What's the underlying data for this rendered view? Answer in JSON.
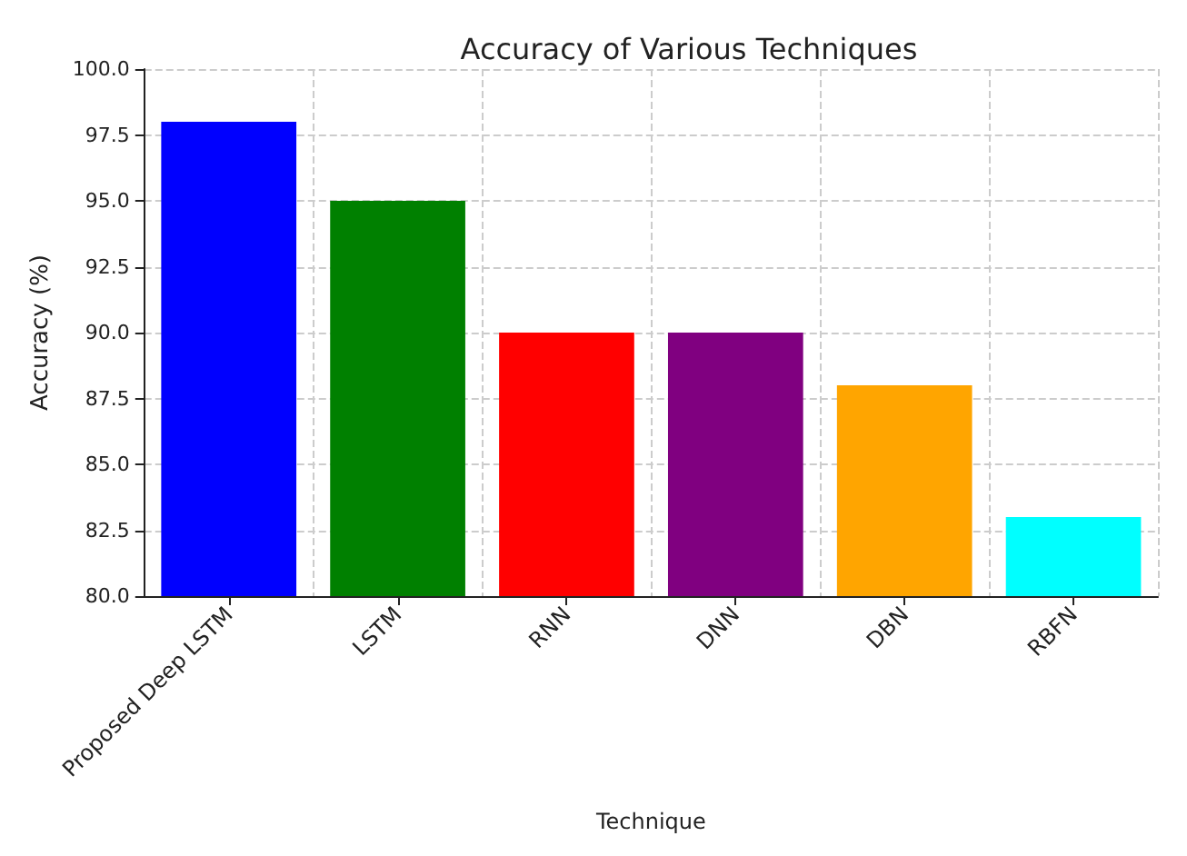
{
  "chart_data": {
    "type": "bar",
    "title": "Accuracy of Various Techniques",
    "xlabel": "Technique",
    "ylabel": "Accuracy (%)",
    "categories": [
      "Proposed Deep LSTM",
      "LSTM",
      "RNN",
      "DNN",
      "DBN",
      "RBFN"
    ],
    "values": [
      98,
      95,
      90,
      90,
      88,
      83
    ],
    "colors": [
      "#0000ff",
      "#008000",
      "#ff0000",
      "#800080",
      "#ffa500",
      "#00ffff"
    ],
    "ylim": [
      80,
      100
    ],
    "yticks": [
      {
        "value": 80,
        "label": "80.0"
      },
      {
        "value": 82.5,
        "label": "82.5"
      },
      {
        "value": 85,
        "label": "85.0"
      },
      {
        "value": 87.5,
        "label": "87.5"
      },
      {
        "value": 90,
        "label": "90.0"
      },
      {
        "value": 92.5,
        "label": "92.5"
      },
      {
        "value": 95,
        "label": "95.0"
      },
      {
        "value": 97.5,
        "label": "97.5"
      },
      {
        "value": 100,
        "label": "100.0"
      }
    ],
    "grid": true
  }
}
